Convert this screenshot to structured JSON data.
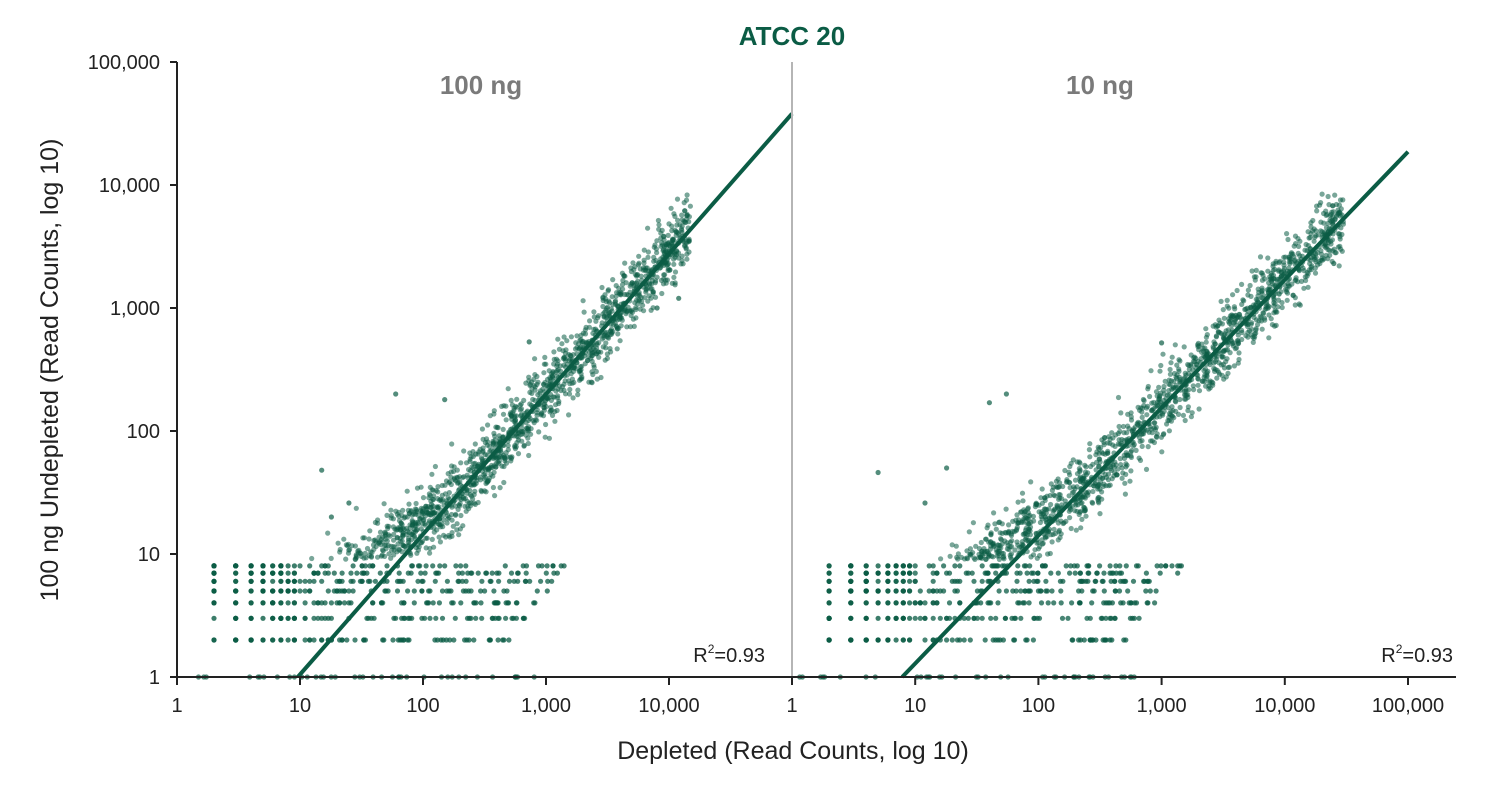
{
  "title": "ATCC 20",
  "colors": {
    "accent": "#0b5c45",
    "panel_title": "#7a7a7a",
    "axis": "#222222",
    "divider": "#b5b5b5"
  },
  "y_axis": {
    "label": "100 ng Undepleted (Read Counts, log 10)",
    "scale": "log10",
    "range": [
      1,
      100000
    ],
    "ticks": [
      1,
      10,
      100,
      1000,
      10000,
      100000
    ],
    "tick_labels": [
      "1",
      "10",
      "100",
      "1,000",
      "10,000",
      "100,000"
    ]
  },
  "x_axis": {
    "label": "Depleted (Read Counts, log 10)"
  },
  "chart_data": [
    {
      "type": "scatter",
      "panel": "100 ng",
      "title": "100 ng",
      "xscale": "log10",
      "yscale": "log10",
      "xlim": [
        1,
        100000
      ],
      "ylim": [
        1,
        100000
      ],
      "xticks": [
        1,
        10,
        100,
        1000,
        10000
      ],
      "xtick_labels": [
        "1",
        "10",
        "100",
        "1,000",
        "10,000"
      ],
      "annotation": {
        "r2_label": "R",
        "r2_sup": "2",
        "r2_value": "=0.93"
      },
      "fit_line": {
        "slope": 1.14,
        "intercept": -1.12
      },
      "point_cloud": {
        "description_of_distribution": "dense cloud along fit line; discrete bands at low counts",
        "main_cloud_x_range": [
          5,
          15000
        ],
        "discrete_y_levels": [
          2,
          3,
          4,
          5,
          6,
          7,
          8
        ]
      },
      "notable_points": [
        {
          "x": 60,
          "y": 200
        },
        {
          "x": 150,
          "y": 180
        },
        {
          "x": 15,
          "y": 48
        },
        {
          "x": 25,
          "y": 26
        },
        {
          "x": 18,
          "y": 20
        },
        {
          "x": 730,
          "y": 530
        },
        {
          "x": 8000,
          "y": 1000
        },
        {
          "x": 12000,
          "y": 1200
        },
        {
          "x": 4000,
          "y": 850
        }
      ]
    },
    {
      "type": "scatter",
      "panel": "10 ng",
      "title": "10 ng",
      "xscale": "log10",
      "yscale": "log10",
      "xlim": [
        1,
        100000
      ],
      "ylim": [
        1,
        100000
      ],
      "xticks": [
        1,
        10,
        100,
        1000,
        10000,
        100000
      ],
      "xtick_labels": [
        "1",
        "10",
        "100",
        "1,000",
        "10,000",
        "100,000"
      ],
      "annotation": {
        "r2_label": "R",
        "r2_sup": "2",
        "r2_value": "=0.93"
      },
      "fit_line": {
        "slope": 1.04,
        "intercept": -0.93
      },
      "point_cloud": {
        "description_of_distribution": "dense cloud along fit line; discrete bands at low counts",
        "main_cloud_x_range": [
          5,
          30000
        ],
        "discrete_y_levels": [
          2,
          3,
          4,
          5,
          6,
          7,
          8
        ]
      },
      "notable_points": [
        {
          "x": 5,
          "y": 46
        },
        {
          "x": 18,
          "y": 50
        },
        {
          "x": 40,
          "y": 170
        },
        {
          "x": 55,
          "y": 200
        },
        {
          "x": 12,
          "y": 26
        },
        {
          "x": 1000,
          "y": 520
        },
        {
          "x": 4000,
          "y": 870
        },
        {
          "x": 9000,
          "y": 1300
        },
        {
          "x": 25000,
          "y": 2300
        }
      ]
    }
  ]
}
